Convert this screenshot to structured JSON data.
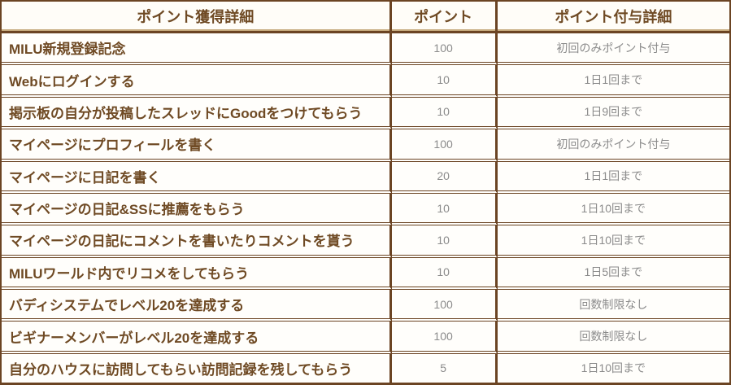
{
  "table": {
    "title_semantic": "point-rules-table",
    "headers": {
      "action": "ポイント獲得詳細",
      "points": "ポイント",
      "detail": "ポイント付与詳細"
    },
    "rows": [
      {
        "action": "MILU新規登録記念",
        "points": "100",
        "detail": "初回のみポイント付与"
      },
      {
        "action": "Webにログインする",
        "points": "10",
        "detail": "1日1回まで"
      },
      {
        "action": "掲示板の自分が投稿したスレッドにGoodをつけてもらう",
        "points": "10",
        "detail": "1日9回まで"
      },
      {
        "action": "マイページにプロフィールを書く",
        "points": "100",
        "detail": "初回のみポイント付与"
      },
      {
        "action": "マイページに日記を書く",
        "points": "20",
        "detail": "1日1回まで"
      },
      {
        "action": "マイページの日記&SSに推薦をもらう",
        "points": "10",
        "detail": "1日10回まで"
      },
      {
        "action": "マイページの日記にコメントを書いたりコメントを貰う",
        "points": "10",
        "detail": "1日10回まで"
      },
      {
        "action": "MILUワールド内でリコメをしてもらう",
        "points": "10",
        "detail": "1日5回まで"
      },
      {
        "action": "バディシステムでレベル20を達成する",
        "points": "100",
        "detail": "回数制限なし"
      },
      {
        "action": "ビギナーメンバーがレベル20を達成する",
        "points": "100",
        "detail": "回数制限なし"
      },
      {
        "action": "自分のハウスに訪問してもらい訪問記録を残してもらう",
        "points": "5",
        "detail": "1日10回まで"
      }
    ],
    "colors": {
      "border_dark": "#6b4423",
      "border_tan": "#c5a97c",
      "text_brown": "#6f4a24",
      "text_gray": "#8b8b8b",
      "cell_background": "#fffefb"
    }
  }
}
